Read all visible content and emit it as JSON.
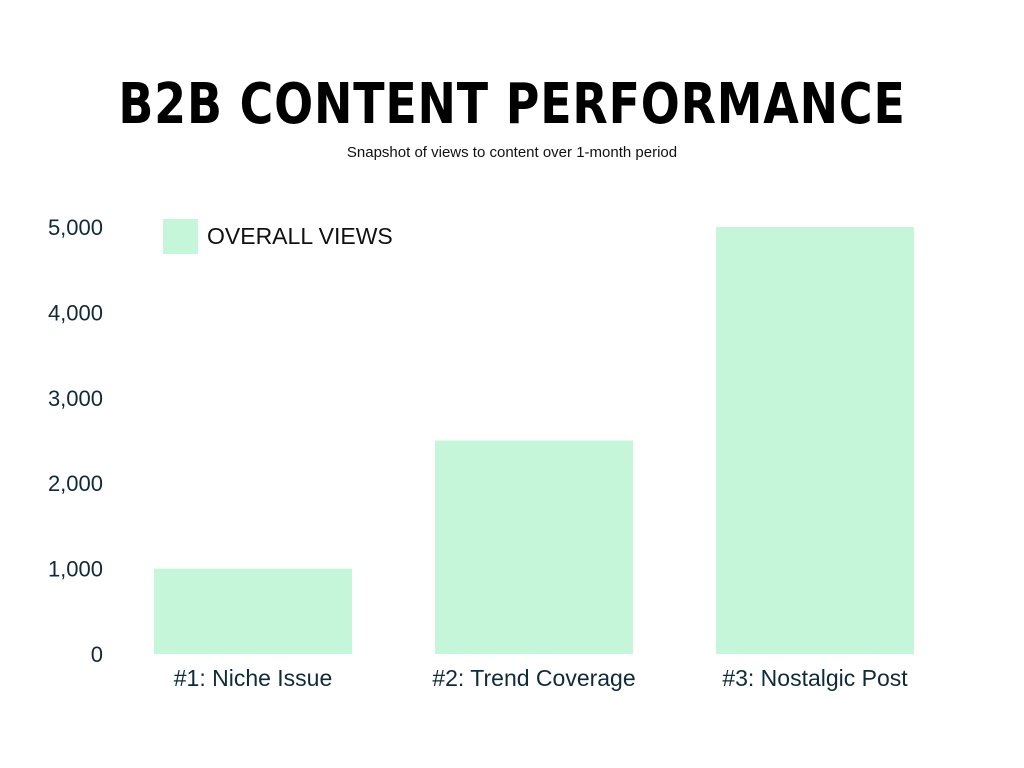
{
  "colors": {
    "bar": "#c6f6d9",
    "text": "#0f2a3a"
  },
  "chart_data": {
    "type": "bar",
    "title": "B2B CONTENT PERFORMANCE",
    "subtitle": "Snapshot of views to content over 1-month period",
    "categories": [
      "#1: Niche Issue",
      "#2: Trend Coverage",
      "#3: Nostalgic Post"
    ],
    "series": [
      {
        "name": "OVERALL VIEWS",
        "values": [
          1000,
          2500,
          5000
        ]
      }
    ],
    "yticks": [
      "0",
      "1,000",
      "2,000",
      "3,000",
      "4,000",
      "5,000"
    ],
    "ylim": [
      0,
      5000
    ],
    "xlabel": "",
    "ylabel": "",
    "grid": false,
    "legend": "top-left"
  }
}
